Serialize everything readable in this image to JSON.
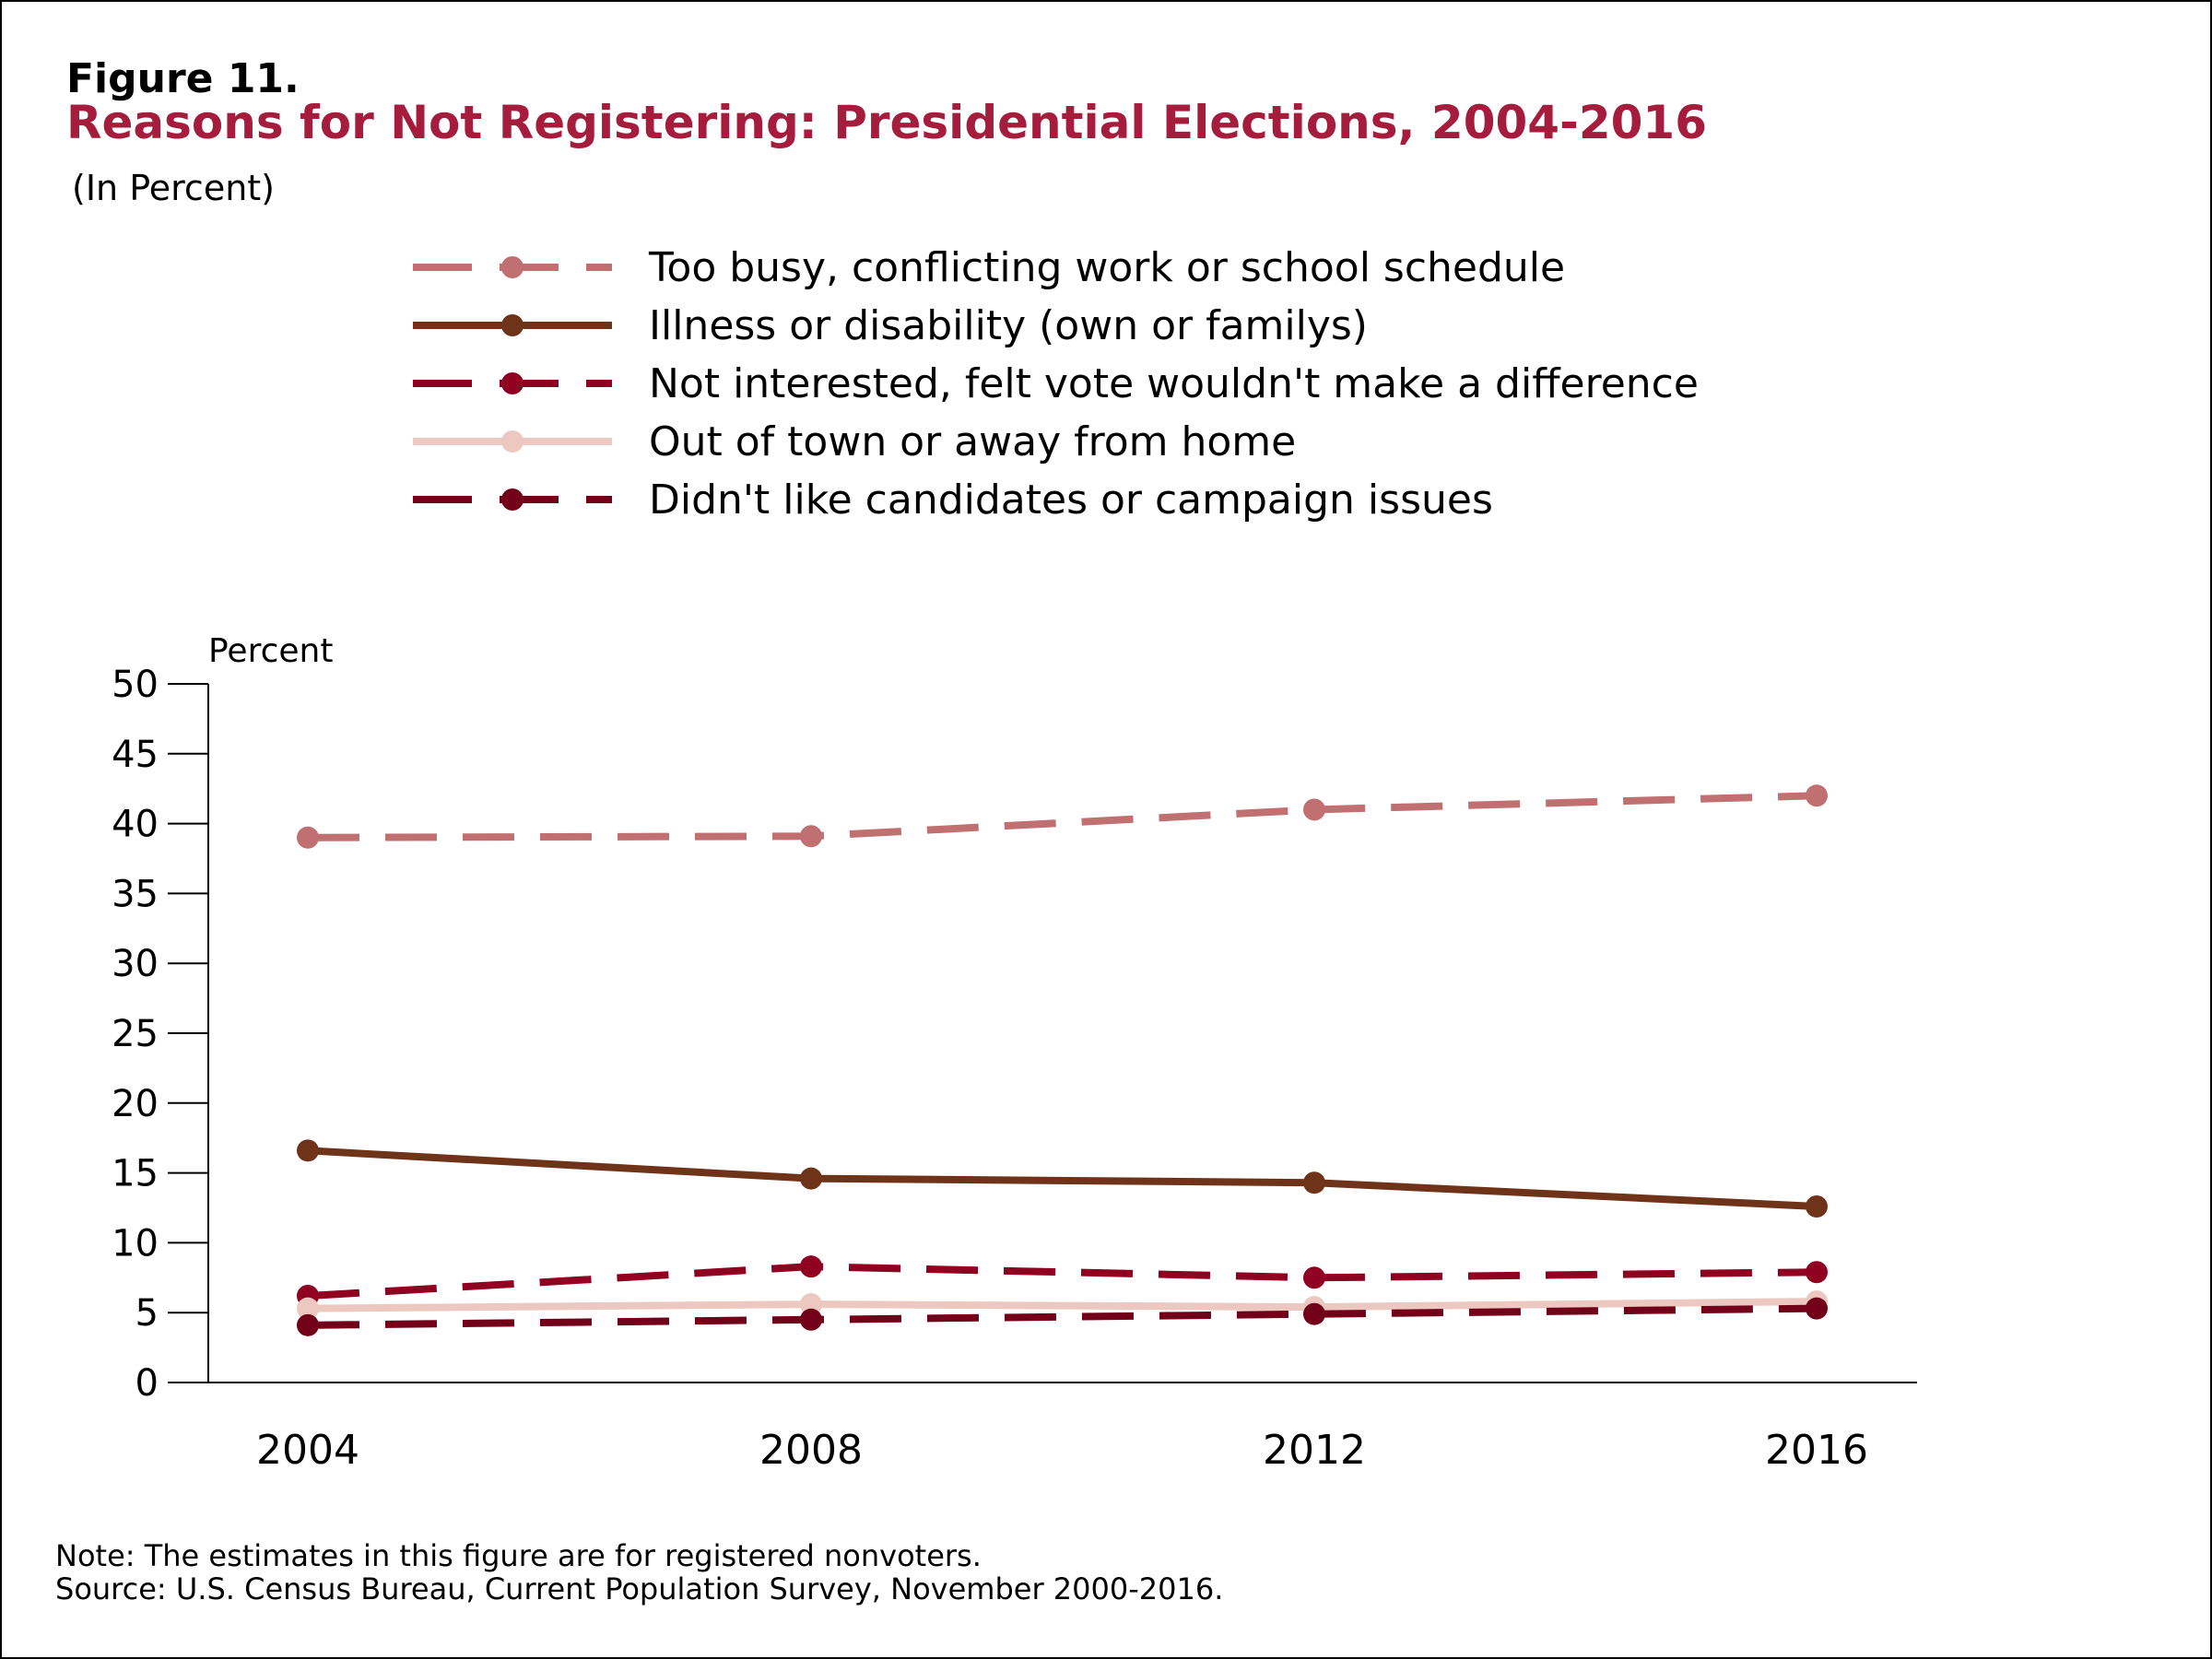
{
  "figure": {
    "label": "Figure 11.",
    "title": "Reasons for Not Registering: Presidential Elections, 2004-2016",
    "subtitle": "(In Percent)",
    "note": "Note: The estimates in this figure are for registered nonvoters.",
    "source": "Source: U.S. Census Bureau, Current Population Survey, November 2000-2016."
  },
  "chart_data": {
    "type": "line",
    "title": "Reasons for Not Registering: Presidential Elections, 2004-2016",
    "subtitle": "(In Percent)",
    "xlabel": "",
    "ylabel": "Percent",
    "x": [
      2004,
      2008,
      2012,
      2016
    ],
    "ylim": [
      0,
      50
    ],
    "yticks": [
      0,
      5,
      10,
      15,
      20,
      25,
      30,
      35,
      40,
      45,
      50
    ],
    "grid": false,
    "legend": "top",
    "series": [
      {
        "name": "Too busy, conflicting work or school schedule",
        "values": [
          39.0,
          39.1,
          41.0,
          42.0
        ],
        "color": "#c07070",
        "style": "dashed"
      },
      {
        "name": "Illness or disability (own or familys)",
        "values": [
          16.6,
          14.6,
          14.3,
          12.6
        ],
        "color": "#6e3318",
        "style": "solid"
      },
      {
        "name": "Not interested, felt vote wouldn't make a difference",
        "values": [
          6.2,
          8.3,
          7.5,
          7.9
        ],
        "color": "#900020",
        "style": "dashed"
      },
      {
        "name": "Out of town or away from home",
        "values": [
          5.3,
          5.6,
          5.4,
          5.8
        ],
        "color": "#ecc8c0",
        "style": "solid"
      },
      {
        "name": "Didn't like candidates or campaign issues",
        "values": [
          4.1,
          4.5,
          4.9,
          5.3
        ],
        "color": "#720018",
        "style": "dashed"
      }
    ]
  }
}
